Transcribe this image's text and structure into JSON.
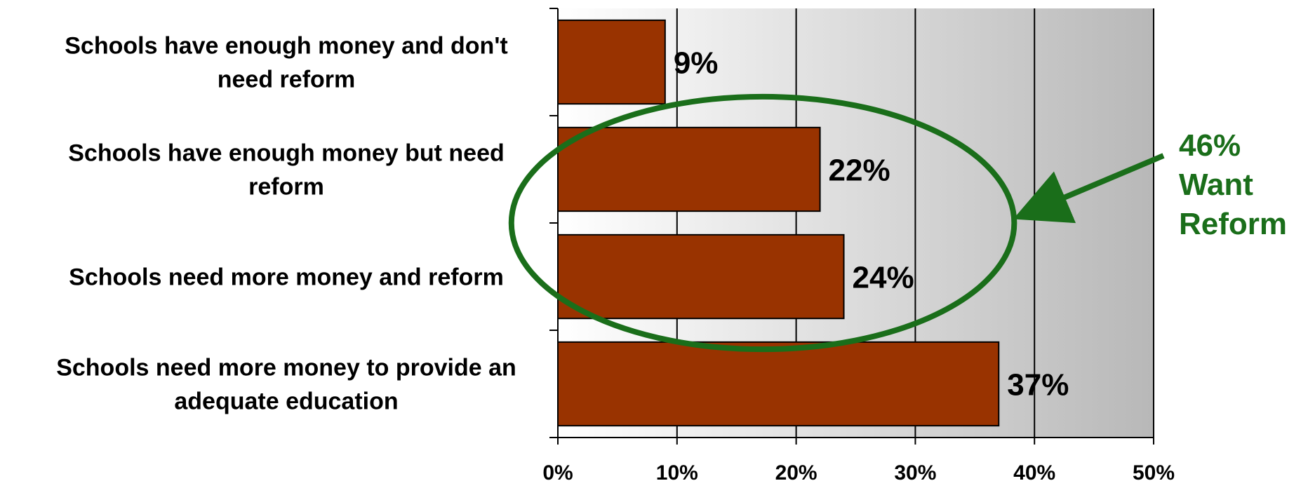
{
  "chart_data": {
    "type": "bar",
    "orientation": "horizontal",
    "categories": [
      [
        "Schools have enough money and don't",
        "need reform"
      ],
      [
        "Schools have enough money but need",
        "reform"
      ],
      [
        "Schools need more money and reform"
      ],
      [
        "Schools need more money to provide an",
        "adequate education"
      ]
    ],
    "values": [
      9,
      22,
      24,
      37
    ],
    "value_labels": [
      "9%",
      "22%",
      "24%",
      "37%"
    ],
    "xlim": [
      0,
      50
    ],
    "xticks": [
      0,
      10,
      20,
      30,
      40,
      50
    ],
    "xtick_labels": [
      "0%",
      "10%",
      "20%",
      "30%",
      "40%",
      "50%"
    ],
    "grid": true,
    "bar_color": "#993300",
    "annotation": {
      "lines": [
        "46%",
        "Want",
        "Reform"
      ],
      "color": "#1a6e1a",
      "encircles_categories": [
        1,
        2
      ]
    }
  }
}
